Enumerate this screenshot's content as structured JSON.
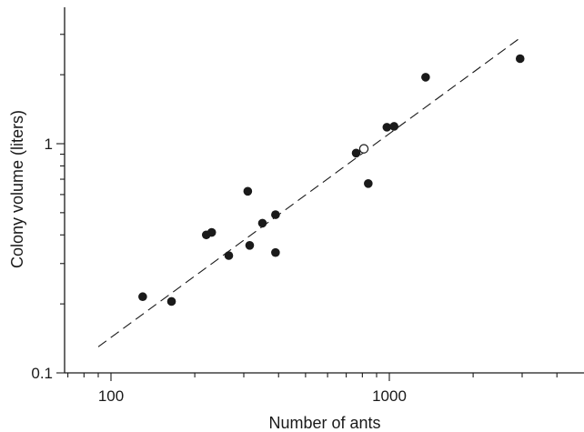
{
  "chart_data": {
    "type": "scatter",
    "title": "",
    "xlabel": "Number of ants",
    "ylabel": "Colony volume (liters)",
    "x_scale": "log",
    "y_scale": "log",
    "xlim": [
      70,
      5000
    ],
    "ylim": [
      0.1,
      4
    ],
    "x_ticks": [
      100,
      1000
    ],
    "x_tick_labels": [
      "100",
      "1000"
    ],
    "y_ticks": [
      0.1,
      1
    ],
    "y_tick_labels": [
      "0.1",
      "1"
    ],
    "grid": false,
    "legend": "none",
    "colors": {
      "filled": "#1a1a1a",
      "open": "#ffffff",
      "line": "#1a1a1a"
    },
    "series": [
      {
        "marker": "filled-circle",
        "points": [
          [
            130,
            0.215
          ],
          [
            165,
            0.205
          ],
          [
            220,
            0.4
          ],
          [
            230,
            0.41
          ],
          [
            265,
            0.325
          ],
          [
            310,
            0.62
          ],
          [
            315,
            0.36
          ],
          [
            350,
            0.45
          ],
          [
            390,
            0.49
          ],
          [
            390,
            0.335
          ],
          [
            760,
            0.91
          ],
          [
            840,
            0.67
          ],
          [
            980,
            1.18
          ],
          [
            1040,
            1.19
          ],
          [
            1350,
            1.95
          ],
          [
            2950,
            2.35
          ]
        ]
      },
      {
        "marker": "open-circle",
        "points": [
          [
            810,
            0.95
          ]
        ]
      }
    ],
    "fit_line": {
      "style": "dashed",
      "from": [
        90,
        0.13
      ],
      "to": [
        2900,
        2.85
      ]
    }
  }
}
